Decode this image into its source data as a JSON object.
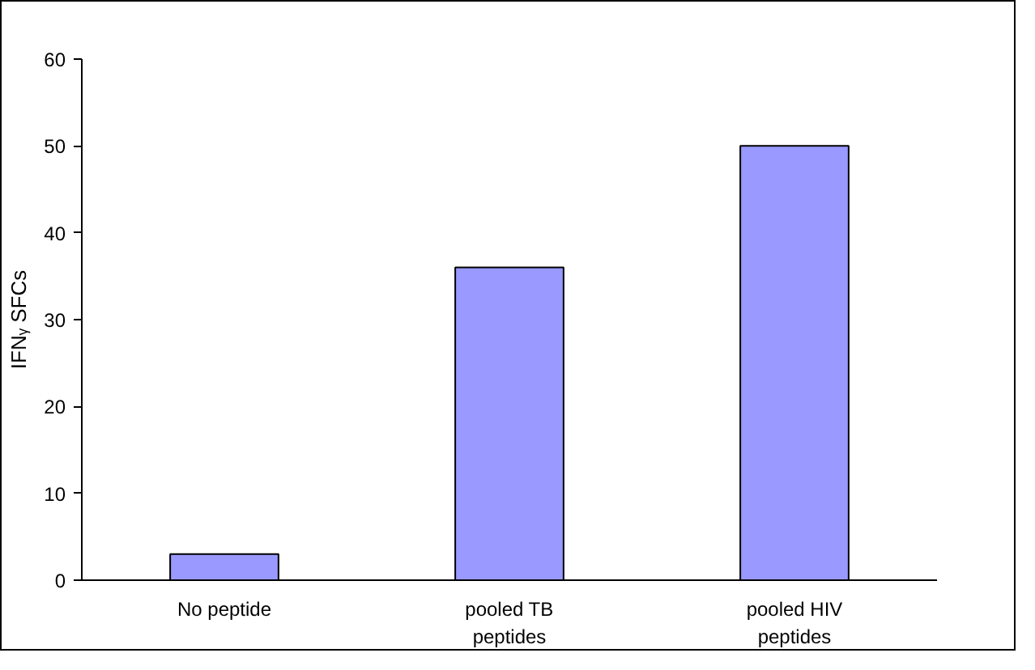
{
  "chart_data": {
    "type": "bar",
    "ylabel": "IFNᵧ SFCs",
    "categories": [
      "No peptide",
      "pooled TB peptides",
      "pooled HIV peptides"
    ],
    "values": [
      3,
      36,
      50
    ],
    "color": "#9999ff",
    "ylim": [
      0,
      60
    ],
    "yticks": [
      0,
      10,
      20,
      30,
      40,
      50,
      60
    ],
    "grid": false
  }
}
